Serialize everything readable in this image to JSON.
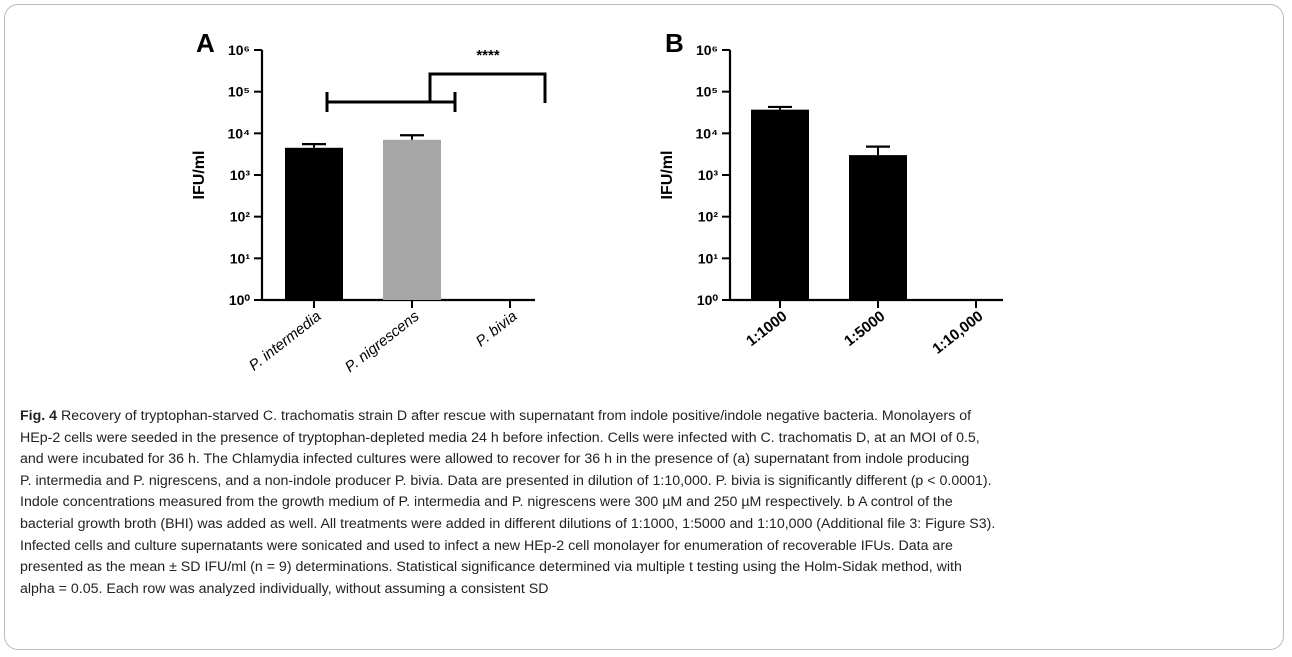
{
  "chart_data": [
    {
      "panel": "A",
      "type": "bar",
      "ylabel": "IFU/ml",
      "yscale": "log",
      "yticks": [
        "10⁰",
        "10¹",
        "10²",
        "10³",
        "10⁴",
        "10⁵",
        "10⁶"
      ],
      "ylim": [
        1,
        1000000
      ],
      "categories": [
        "P. intermedia",
        "P. nigrescens",
        "P. bivia"
      ],
      "values": [
        4500,
        7000,
        1
      ],
      "error_upper": [
        5500,
        9000,
        null
      ],
      "bar_colors": [
        "#000000",
        "#a6a6a6",
        "#000000"
      ],
      "annotation": "****"
    },
    {
      "panel": "B",
      "type": "bar",
      "ylabel": "IFU/ml",
      "yscale": "log",
      "yticks": [
        "10⁰",
        "10¹",
        "10²",
        "10³",
        "10⁴",
        "10⁵",
        "10⁶"
      ],
      "ylim": [
        1,
        1000000
      ],
      "categories": [
        "1:1000",
        "1:5000",
        "1:10,000"
      ],
      "values": [
        37000,
        3000,
        1
      ],
      "error_upper": [
        43000,
        4800,
        null
      ],
      "bar_colors": [
        "#000000",
        "#000000",
        "#000000"
      ]
    }
  ],
  "caption": {
    "figure_label": "Fig. 4",
    "lines": [
      " Recovery of tryptophan-starved C. trachomatis strain D after rescue with supernatant from indole positive/indole negative bacteria. Monolayers of",
      "HEp-2 cells were seeded in the presence of tryptophan-depleted media 24 h before infection. Cells were infected with C. trachomatis D, at an MOI of 0.5,",
      "and were incubated for 36 h. The Chlamydia infected cultures were allowed to recover for 36 h in the presence of (a) supernatant from indole producing",
      "P. intermedia and P. nigrescens, and a non-indole producer P. bivia. Data are presented in dilution of 1:10,000. P. bivia is significantly different (p < 0.0001).",
      "Indole concentrations measured from the growth medium of P. intermedia and P. nigrescens were 300 µM and 250 µM respectively. b A control of the",
      "bacterial growth broth (BHI) was added as well. All treatments were added in different dilutions of 1:1000, 1:5000 and 1:10,000 (Additional file 3: Figure S3).",
      "Infected cells and culture supernatants were sonicated and used to infect a new HEp-2 cell monolayer for enumeration of recoverable IFUs. Data are",
      "presented as the mean ± SD IFU/ml (n = 9) determinations. Statistical significance determined via multiple t testing using the Holm-Sidak method, with",
      "alpha = 0.05. Each row was analyzed individually, without assuming a consistent SD"
    ]
  }
}
